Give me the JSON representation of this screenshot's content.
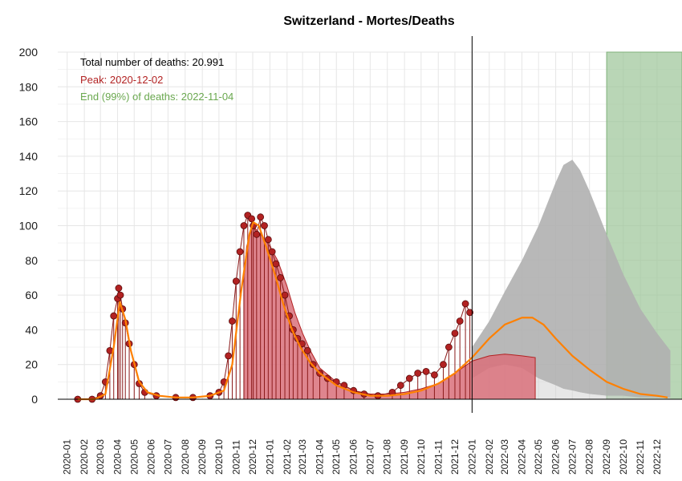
{
  "chart_data": {
    "type": "area",
    "title": "Switzerland - Mortes/Deaths",
    "xlabel": "",
    "ylabel": "",
    "ylim": [
      0,
      200
    ],
    "yticks": [
      0,
      20,
      40,
      60,
      80,
      100,
      120,
      140,
      160,
      180,
      200
    ],
    "xlim": [
      "2019-12-15",
      "2023-01-15"
    ],
    "xticks": [
      "2020-01",
      "2020-02",
      "2020-03",
      "2020-04",
      "2020-05",
      "2020-06",
      "2020-07",
      "2020-08",
      "2020-09",
      "2020-10",
      "2020-11",
      "2020-12",
      "2021-01",
      "2021-02",
      "2021-03",
      "2021-04",
      "2021-05",
      "2021-06",
      "2021-07",
      "2021-08",
      "2021-09",
      "2021-10",
      "2021-11",
      "2021-12",
      "2022-01",
      "2022-02",
      "2022-03",
      "2022-04",
      "2022-05",
      "2022-06",
      "2022-07",
      "2022-08",
      "2022-09",
      "2022-10",
      "2022-11",
      "2022-12"
    ],
    "grid": true,
    "annotations": [
      {
        "text": "Total number of deaths: 20.991",
        "color": "#000000"
      },
      {
        "text": "Peak: 2020-12-02",
        "color": "#b22222"
      },
      {
        "text": "End (99%) of deaths: 2022-11-04",
        "color": "#6aa84f"
      }
    ],
    "vline_date": "2022-01-01",
    "green_band": {
      "start": "2022-09-01",
      "end": "2023-01-15",
      "y": 200,
      "color": "#9bc497"
    },
    "colors": {
      "observed": "#b22222",
      "observed_fill": "#d9707a",
      "fitted": "#ff8000",
      "forecast": "#b0b0b0"
    },
    "observed_points": {
      "x": [
        "2020-01-20",
        "2020-02-15",
        "2020-03-01",
        "2020-03-10",
        "2020-03-18",
        "2020-03-25",
        "2020-04-01",
        "2020-04-03",
        "2020-04-06",
        "2020-04-10",
        "2020-04-15",
        "2020-04-22",
        "2020-05-01",
        "2020-05-10",
        "2020-05-20",
        "2020-06-10",
        "2020-07-15",
        "2020-08-15",
        "2020-09-15",
        "2020-10-01",
        "2020-10-10",
        "2020-10-18",
        "2020-10-25",
        "2020-11-01",
        "2020-11-08",
        "2020-11-15",
        "2020-11-22",
        "2020-11-29",
        "2020-12-02",
        "2020-12-08",
        "2020-12-15",
        "2020-12-22",
        "2020-12-29",
        "2021-01-05",
        "2021-01-12",
        "2021-01-20",
        "2021-01-28",
        "2021-02-05",
        "2021-02-12",
        "2021-02-20",
        "2021-02-28",
        "2021-03-10",
        "2021-03-20",
        "2021-04-01",
        "2021-04-15",
        "2021-05-01",
        "2021-05-15",
        "2021-06-01",
        "2021-06-20",
        "2021-07-15",
        "2021-08-10",
        "2021-08-25",
        "2021-09-10",
        "2021-09-25",
        "2021-10-10",
        "2021-10-25",
        "2021-11-10",
        "2021-11-20",
        "2021-12-01",
        "2021-12-10",
        "2021-12-20",
        "2021-12-28"
      ],
      "y": [
        0,
        0,
        2,
        10,
        28,
        48,
        58,
        64,
        60,
        52,
        44,
        32,
        20,
        9,
        4,
        2,
        1,
        1,
        2,
        4,
        10,
        25,
        45,
        68,
        85,
        100,
        106,
        104,
        100,
        95,
        105,
        100,
        92,
        85,
        78,
        70,
        60,
        48,
        40,
        35,
        32,
        28,
        20,
        15,
        12,
        10,
        8,
        5,
        3,
        2,
        4,
        8,
        12,
        15,
        16,
        14,
        20,
        30,
        38,
        45,
        55,
        50
      ]
    },
    "fitted_curve": {
      "x": [
        "2020-01-20",
        "2020-02-20",
        "2020-03-10",
        "2020-03-25",
        "2020-04-05",
        "2020-04-15",
        "2020-04-25",
        "2020-05-10",
        "2020-05-25",
        "2020-06-15",
        "2020-07-15",
        "2020-08-15",
        "2020-09-15",
        "2020-10-10",
        "2020-10-25",
        "2020-11-10",
        "2020-11-25",
        "2020-12-02",
        "2020-12-12",
        "2020-12-25",
        "2021-01-10",
        "2021-01-25",
        "2021-02-10",
        "2021-02-25",
        "2021-03-15",
        "2021-04-01",
        "2021-05-01",
        "2021-06-01",
        "2021-07-01",
        "2021-08-01",
        "2021-09-01",
        "2021-10-01",
        "2021-11-01",
        "2021-12-01",
        "2022-01-01",
        "2022-02-01",
        "2022-03-01",
        "2022-04-01",
        "2022-04-20",
        "2022-05-10",
        "2022-06-01",
        "2022-07-01",
        "2022-08-01",
        "2022-09-01",
        "2022-10-01",
        "2022-11-01",
        "2022-12-01",
        "2022-12-20"
      ],
      "y": [
        0,
        0,
        3,
        30,
        56,
        46,
        28,
        10,
        4,
        2,
        1,
        1,
        2,
        5,
        20,
        62,
        95,
        102,
        100,
        88,
        72,
        55,
        40,
        30,
        21,
        15,
        8,
        4,
        2,
        2,
        3,
        5,
        9,
        15,
        24,
        35,
        43,
        47,
        47,
        43,
        35,
        25,
        17,
        10,
        6,
        3,
        2,
        1
      ]
    },
    "observed_area": {
      "x": [
        "2020-11-15",
        "2020-11-20",
        "2020-12-01",
        "2020-12-15",
        "2021-01-01",
        "2021-01-15",
        "2021-02-01",
        "2021-02-15",
        "2021-03-01",
        "2021-03-15",
        "2021-04-01",
        "2021-05-01",
        "2021-06-01",
        "2021-07-01",
        "2021-08-01",
        "2021-09-01",
        "2021-10-01",
        "2021-11-01",
        "2021-12-01",
        "2022-01-01",
        "2022-02-01",
        "2022-03-01",
        "2022-04-01",
        "2022-04-25"
      ],
      "y": [
        70,
        88,
        100,
        95,
        88,
        80,
        65,
        50,
        38,
        28,
        18,
        10,
        5,
        3,
        3,
        4,
        6,
        9,
        15,
        22,
        25,
        26,
        25,
        24
      ]
    },
    "forecast_envelope": {
      "x": [
        "2022-01-01",
        "2022-02-01",
        "2022-03-01",
        "2022-04-01",
        "2022-05-01",
        "2022-06-01",
        "2022-06-15",
        "2022-07-01",
        "2022-07-15",
        "2022-08-01",
        "2022-09-01",
        "2022-10-01",
        "2022-11-01",
        "2022-12-01",
        "2022-12-25"
      ],
      "upper": [
        30,
        45,
        62,
        80,
        100,
        125,
        135,
        138,
        132,
        120,
        95,
        72,
        52,
        38,
        28
      ],
      "lower": [
        12,
        18,
        20,
        18,
        12,
        8,
        6,
        5,
        4,
        3,
        2,
        2,
        1,
        1,
        1
      ]
    }
  }
}
